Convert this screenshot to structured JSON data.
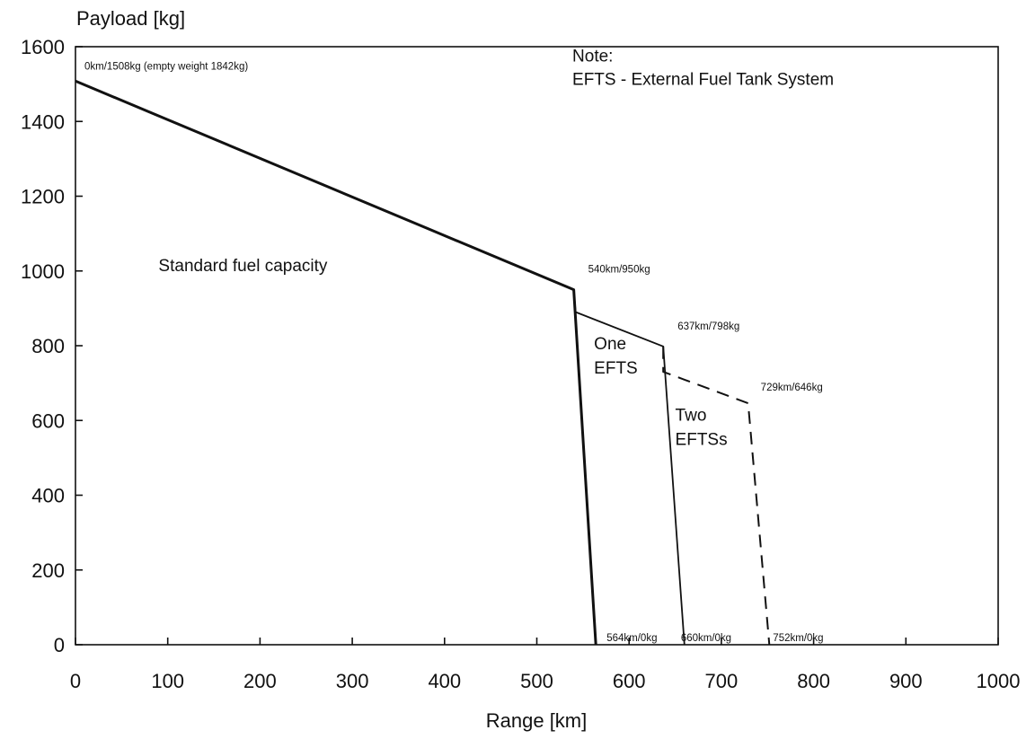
{
  "chart_data": {
    "type": "line",
    "title": "",
    "xlabel": "Range [km]",
    "ylabel": "Payload [kg]",
    "xlim": [
      0,
      1000
    ],
    "ylim": [
      0,
      1600
    ],
    "xticks": [
      0,
      100,
      200,
      300,
      400,
      500,
      600,
      700,
      800,
      900,
      1000
    ],
    "yticks": [
      0,
      200,
      400,
      600,
      800,
      1000,
      1200,
      1400,
      1600
    ],
    "grid": false,
    "series": [
      {
        "name": "Standard fuel capacity",
        "style": "solid-thick",
        "points": [
          [
            0,
            1508
          ],
          [
            540,
            950
          ],
          [
            564,
            0
          ]
        ]
      },
      {
        "name": "One EFTS",
        "style": "solid",
        "points": [
          [
            540,
            950
          ],
          [
            542,
            890
          ],
          [
            637,
            798
          ],
          [
            660,
            0
          ]
        ]
      },
      {
        "name": "Two EFTSs",
        "style": "dashed",
        "points": [
          [
            637,
            798
          ],
          [
            637,
            730
          ],
          [
            729,
            646
          ],
          [
            752,
            0
          ]
        ]
      }
    ],
    "point_labels": [
      {
        "text": "0km/1508kg (empty weight 1842kg)",
        "x": 0,
        "y": 1508
      },
      {
        "text": "540km/950kg",
        "x": 540,
        "y": 950
      },
      {
        "text": "637km/798kg",
        "x": 637,
        "y": 798
      },
      {
        "text": "729km/646kg",
        "x": 729,
        "y": 646
      },
      {
        "text": "564km/0kg",
        "x": 564,
        "y": 0
      },
      {
        "text": "660km/0kg",
        "x": 660,
        "y": 0
      },
      {
        "text": "752km/0kg",
        "x": 752,
        "y": 0
      }
    ],
    "region_labels": [
      {
        "lines": [
          "Standard fuel capacity"
        ],
        "x": 90,
        "y": 1000
      },
      {
        "lines": [
          "One",
          "EFTS"
        ],
        "x": 562,
        "y": 790
      },
      {
        "lines": [
          "Two",
          "EFTSs"
        ],
        "x": 650,
        "y": 600
      }
    ],
    "note": {
      "lines": [
        "Note:",
        "EFTS - External Fuel Tank System"
      ],
      "x": 520,
      "y": 1560
    }
  }
}
